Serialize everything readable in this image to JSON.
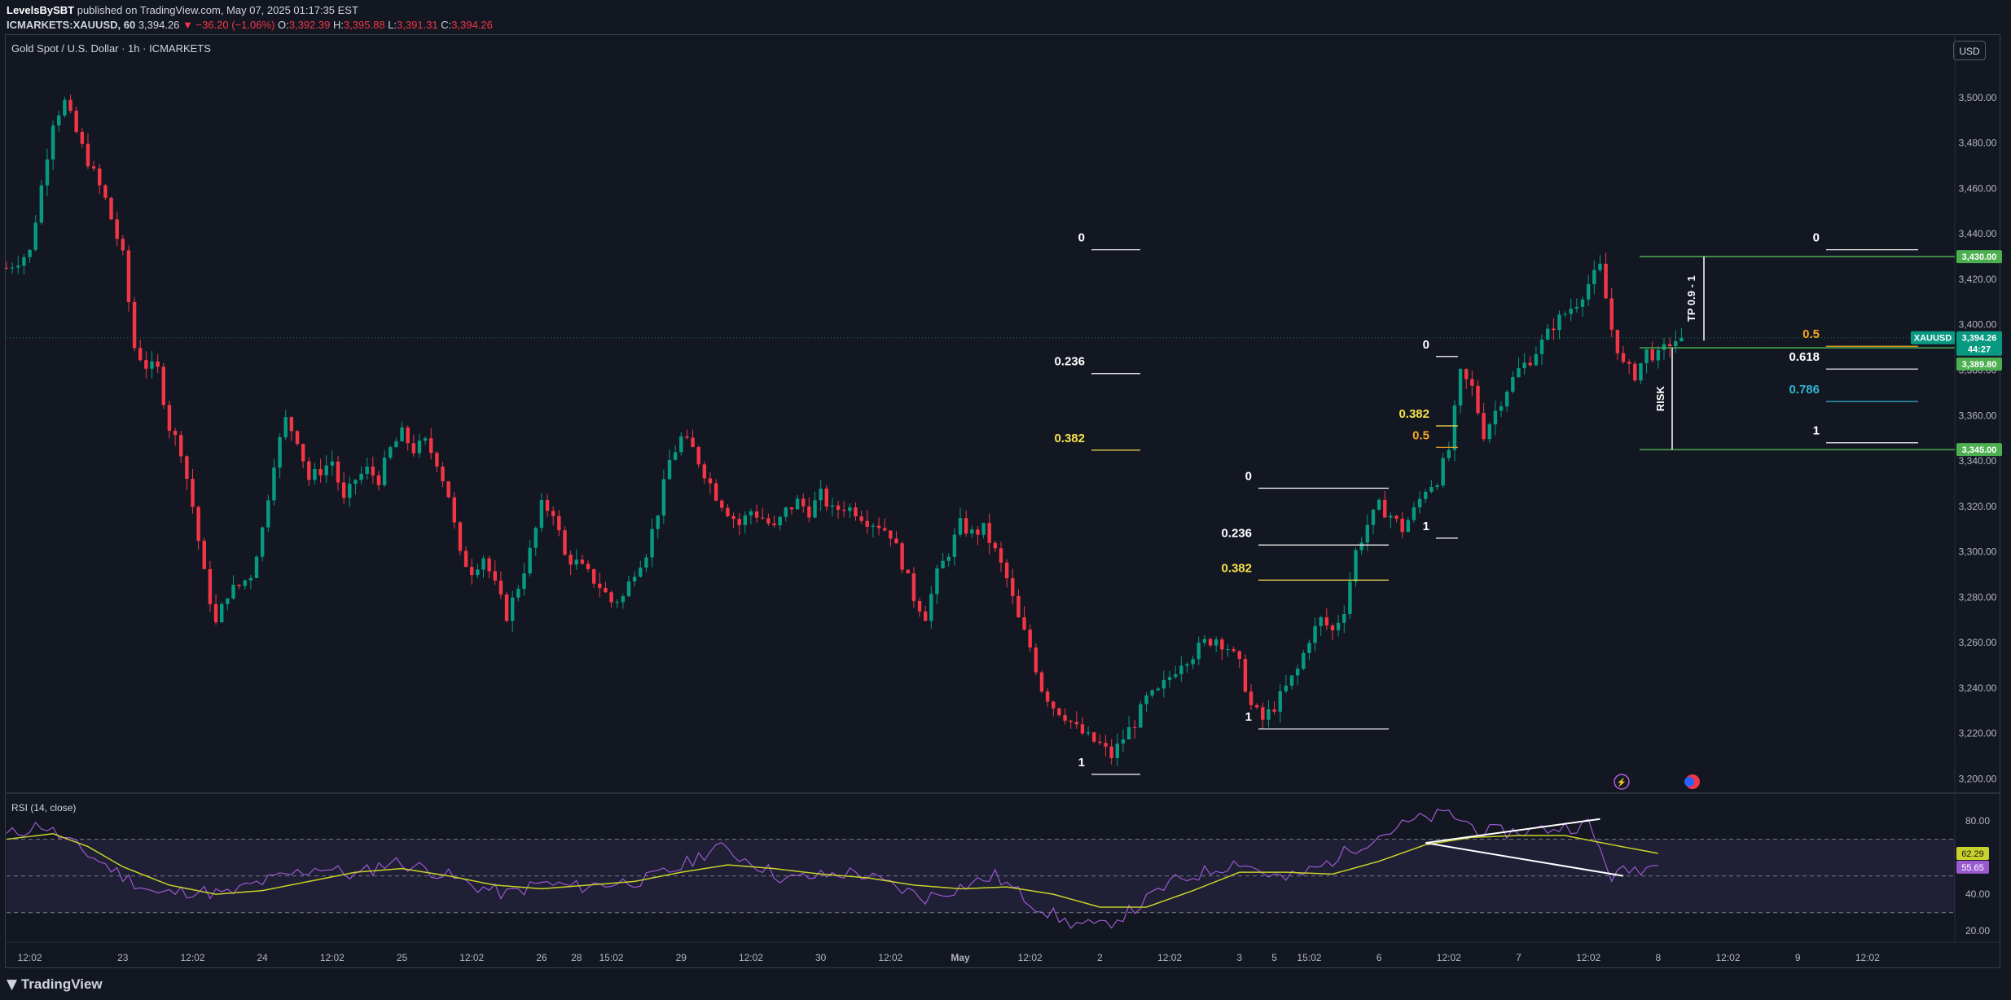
{
  "header": {
    "publisher": "LevelsBySBT",
    "published_text": "published on TradingView.com, May 07, 2025 01:17:35 EST",
    "symbol_line": "ICMARKETS:XAUUSD, 60",
    "last": "3,394.26",
    "change": "▼ −36.20 (−1.06%)",
    "o_label": "O:",
    "o": "3,392.39",
    "h_label": "H:",
    "h": "3,395.88",
    "l_label": "L:",
    "l": "3,391.31",
    "c_label": "C:",
    "c": "3,394.26"
  },
  "symbol_title": "Gold Spot / U.S. Dollar · 1h · ICMARKETS",
  "currency_button": "USD",
  "footer_brand": "TradingView",
  "colors": {
    "background": "#131722",
    "up": "#089981",
    "down": "#f23645",
    "fib_white": "#ffffff",
    "fib_yellow": "#f7e24b",
    "fib_orange": "#f5a623",
    "fib_blue": "#2fb6d6",
    "level_green": "#4caf50",
    "rsi": "#9b59d0",
    "rsi_ma": "#c9d22a"
  },
  "chart_data": {
    "type": "candlestick",
    "symbol": "XAUUSD",
    "y_axis": {
      "ylim": [
        3198,
        3510
      ],
      "ticks": [
        "3,500.00",
        "3,480.00",
        "3,460.00",
        "3,440.00",
        "3,420.00",
        "3,400.00",
        "3,380.00",
        "3,360.00",
        "3,340.00",
        "3,320.00",
        "3,300.00",
        "3,280.00",
        "3,260.00",
        "3,240.00",
        "3,220.00",
        "3,200.00"
      ],
      "tick_values": [
        3500,
        3480,
        3460,
        3440,
        3420,
        3400,
        3380,
        3360,
        3340,
        3320,
        3300,
        3280,
        3260,
        3240,
        3220,
        3200
      ]
    },
    "x_axis": {
      "labels": [
        "12:02",
        "23",
        "12:02",
        "24",
        "12:02",
        "25",
        "12:02",
        "26",
        "28",
        "15:02",
        "29",
        "12:02",
        "30",
        "12:02",
        "May",
        "12:02",
        "2",
        "12:02",
        "3",
        "5",
        "15:02",
        "6",
        "12:02",
        "7",
        "12:02",
        "8",
        "12:02",
        "9",
        "12:02"
      ],
      "label_index": [
        4,
        20,
        32,
        44,
        56,
        68,
        80,
        92,
        98,
        104,
        116,
        128,
        140,
        152,
        164,
        176,
        188,
        200,
        212,
        218,
        224,
        236,
        248,
        260,
        272,
        284,
        296,
        308,
        320
      ],
      "total_slots": 335
    },
    "price_path": [
      [
        0,
        3425
      ],
      [
        4,
        3432
      ],
      [
        8,
        3490
      ],
      [
        10,
        3498
      ],
      [
        13,
        3478
      ],
      [
        17,
        3455
      ],
      [
        20,
        3430
      ],
      [
        22,
        3390
      ],
      [
        24,
        3382
      ],
      [
        26,
        3380
      ],
      [
        28,
        3355
      ],
      [
        30,
        3345
      ],
      [
        32,
        3320
      ],
      [
        34,
        3290
      ],
      [
        36,
        3268
      ],
      [
        38,
        3282
      ],
      [
        40,
        3285
      ],
      [
        42,
        3290
      ],
      [
        44,
        3310
      ],
      [
        46,
        3340
      ],
      [
        48,
        3358
      ],
      [
        50,
        3350
      ],
      [
        52,
        3332
      ],
      [
        54,
        3336
      ],
      [
        56,
        3340
      ],
      [
        58,
        3322
      ],
      [
        60,
        3332
      ],
      [
        62,
        3336
      ],
      [
        64,
        3332
      ],
      [
        66,
        3345
      ],
      [
        68,
        3352
      ],
      [
        70,
        3345
      ],
      [
        72,
        3348
      ],
      [
        74,
        3340
      ],
      [
        76,
        3325
      ],
      [
        78,
        3298
      ],
      [
        80,
        3292
      ],
      [
        82,
        3298
      ],
      [
        84,
        3285
      ],
      [
        86,
        3272
      ],
      [
        88,
        3285
      ],
      [
        90,
        3300
      ],
      [
        92,
        3320
      ],
      [
        94,
        3318
      ],
      [
        96,
        3298
      ],
      [
        98,
        3295
      ],
      [
        100,
        3290
      ],
      [
        102,
        3285
      ],
      [
        104,
        3278
      ],
      [
        106,
        3280
      ],
      [
        108,
        3292
      ],
      [
        110,
        3300
      ],
      [
        112,
        3318
      ],
      [
        114,
        3340
      ],
      [
        116,
        3350
      ],
      [
        118,
        3345
      ],
      [
        120,
        3335
      ],
      [
        122,
        3325
      ],
      [
        124,
        3318
      ],
      [
        126,
        3312
      ],
      [
        128,
        3318
      ],
      [
        130,
        3315
      ],
      [
        132,
        3310
      ],
      [
        134,
        3318
      ],
      [
        136,
        3322
      ],
      [
        138,
        3318
      ],
      [
        140,
        3325
      ],
      [
        142,
        3318
      ],
      [
        144,
        3320
      ],
      [
        146,
        3318
      ],
      [
        148,
        3314
      ],
      [
        150,
        3312
      ],
      [
        152,
        3308
      ],
      [
        154,
        3295
      ],
      [
        156,
        3280
      ],
      [
        158,
        3272
      ],
      [
        160,
        3290
      ],
      [
        162,
        3300
      ],
      [
        164,
        3312
      ],
      [
        166,
        3308
      ],
      [
        168,
        3310
      ],
      [
        170,
        3300
      ],
      [
        172,
        3288
      ],
      [
        174,
        3270
      ],
      [
        176,
        3258
      ],
      [
        178,
        3240
      ],
      [
        180,
        3232
      ],
      [
        182,
        3228
      ],
      [
        184,
        3222
      ],
      [
        186,
        3218
      ],
      [
        188,
        3215
      ],
      [
        190,
        3210
      ],
      [
        192,
        3218
      ],
      [
        194,
        3225
      ],
      [
        196,
        3235
      ],
      [
        198,
        3238
      ],
      [
        200,
        3245
      ],
      [
        202,
        3252
      ],
      [
        204,
        3255
      ],
      [
        206,
        3260
      ],
      [
        208,
        3262
      ],
      [
        210,
        3258
      ],
      [
        212,
        3250
      ],
      [
        214,
        3232
      ],
      [
        216,
        3226
      ],
      [
        218,
        3232
      ],
      [
        220,
        3240
      ],
      [
        222,
        3248
      ],
      [
        224,
        3262
      ],
      [
        226,
        3270
      ],
      [
        228,
        3265
      ],
      [
        230,
        3275
      ],
      [
        232,
        3300
      ],
      [
        234,
        3312
      ],
      [
        236,
        3320
      ],
      [
        238,
        3316
      ],
      [
        240,
        3310
      ],
      [
        242,
        3318
      ],
      [
        244,
        3328
      ],
      [
        246,
        3332
      ],
      [
        248,
        3345
      ],
      [
        250,
        3378
      ],
      [
        252,
        3372
      ],
      [
        254,
        3352
      ],
      [
        256,
        3362
      ],
      [
        258,
        3372
      ],
      [
        260,
        3380
      ],
      [
        262,
        3385
      ],
      [
        264,
        3392
      ],
      [
        266,
        3400
      ],
      [
        268,
        3405
      ],
      [
        270,
        3410
      ],
      [
        272,
        3418
      ],
      [
        274,
        3425
      ],
      [
        276,
        3398
      ],
      [
        278,
        3382
      ],
      [
        280,
        3378
      ],
      [
        282,
        3388
      ],
      [
        284,
        3386
      ],
      [
        286,
        3392
      ],
      [
        288,
        3394.26
      ]
    ],
    "fibonacci_drawings": [
      {
        "levels": [
          {
            "label": "0"
          },
          {
            "label": "0.236"
          },
          {
            "label": "0.382"
          },
          {
            "label": "1"
          }
        ],
        "high": 3433,
        "low": 3202
      },
      {
        "levels": [
          {
            "label": "0"
          },
          {
            "label": "0.236"
          },
          {
            "label": "0.382"
          },
          {
            "label": "1"
          }
        ],
        "high": 3328,
        "low": 3222
      },
      {
        "levels": [
          {
            "label": "0"
          },
          {
            "label": "0.382"
          },
          {
            "label": "0.5"
          },
          {
            "label": "1"
          }
        ],
        "high": 3386,
        "low": 3306
      },
      {
        "levels": [
          {
            "label": "0"
          },
          {
            "label": "0.5"
          },
          {
            "label": "0.618"
          },
          {
            "label": "0.786"
          },
          {
            "label": "1"
          }
        ],
        "high": 3433,
        "low": 3348
      }
    ],
    "annotations": [
      "TP 0.9 - 1",
      "RISK"
    ],
    "price_labels": [
      {
        "text": "3,430.00",
        "value": 3430
      },
      {
        "text": "XAUUSD",
        "value": 3394.26
      },
      {
        "text": "3,394.26",
        "value": 3394.26
      },
      {
        "text": "44:27",
        "value": 3394.26
      },
      {
        "text": "3,389.80",
        "value": 3389.8
      },
      {
        "text": "3,345.00",
        "value": 3345
      }
    ],
    "horizontal_levels": [
      3430,
      3389.8,
      3345
    ],
    "rsi": {
      "title": "RSI (14, close)",
      "ticks": [
        "80.00",
        "40.00",
        "20.00"
      ],
      "tick_values": [
        80,
        40,
        20
      ],
      "ylim": [
        17,
        88
      ],
      "bands": [
        70,
        50,
        30
      ],
      "value_rsi": "55.65",
      "value_ma": "62.29",
      "rsi_path": [
        [
          0,
          72
        ],
        [
          6,
          78
        ],
        [
          10,
          70
        ],
        [
          14,
          62
        ],
        [
          20,
          50
        ],
        [
          26,
          40
        ],
        [
          32,
          42
        ],
        [
          38,
          40
        ],
        [
          42,
          45
        ],
        [
          48,
          50
        ],
        [
          54,
          55
        ],
        [
          60,
          50
        ],
        [
          66,
          58
        ],
        [
          72,
          54
        ],
        [
          76,
          50
        ],
        [
          80,
          45
        ],
        [
          86,
          40
        ],
        [
          92,
          46
        ],
        [
          98,
          44
        ],
        [
          104,
          46
        ],
        [
          110,
          48
        ],
        [
          116,
          55
        ],
        [
          122,
          66
        ],
        [
          128,
          58
        ],
        [
          134,
          48
        ],
        [
          140,
          50
        ],
        [
          146,
          52
        ],
        [
          152,
          45
        ],
        [
          158,
          38
        ],
        [
          164,
          44
        ],
        [
          170,
          50
        ],
        [
          176,
          36
        ],
        [
          182,
          25
        ],
        [
          188,
          22
        ],
        [
          194,
          32
        ],
        [
          200,
          46
        ],
        [
          206,
          52
        ],
        [
          212,
          58
        ],
        [
          216,
          52
        ],
        [
          220,
          48
        ],
        [
          226,
          55
        ],
        [
          232,
          66
        ],
        [
          236,
          72
        ],
        [
          242,
          80
        ],
        [
          248,
          84
        ],
        [
          254,
          74
        ],
        [
          260,
          74
        ],
        [
          266,
          76
        ],
        [
          272,
          78
        ],
        [
          276,
          50
        ],
        [
          280,
          54
        ],
        [
          284,
          55.65
        ]
      ],
      "ma_path": [
        [
          0,
          70
        ],
        [
          8,
          73
        ],
        [
          14,
          66
        ],
        [
          20,
          55
        ],
        [
          28,
          45
        ],
        [
          36,
          40
        ],
        [
          44,
          42
        ],
        [
          52,
          47
        ],
        [
          60,
          52
        ],
        [
          68,
          54
        ],
        [
          76,
          50
        ],
        [
          84,
          45
        ],
        [
          92,
          43
        ],
        [
          100,
          45
        ],
        [
          108,
          47
        ],
        [
          116,
          52
        ],
        [
          124,
          56
        ],
        [
          132,
          54
        ],
        [
          140,
          51
        ],
        [
          148,
          49
        ],
        [
          156,
          45
        ],
        [
          164,
          43
        ],
        [
          172,
          44
        ],
        [
          180,
          40
        ],
        [
          188,
          33
        ],
        [
          196,
          33
        ],
        [
          204,
          42
        ],
        [
          212,
          52
        ],
        [
          220,
          52
        ],
        [
          228,
          51
        ],
        [
          236,
          58
        ],
        [
          244,
          67
        ],
        [
          252,
          71
        ],
        [
          260,
          72
        ],
        [
          268,
          72
        ],
        [
          276,
          67
        ],
        [
          284,
          62.29
        ]
      ],
      "divergence": [
        [
          [
            244,
            68
          ],
          [
            274,
            81
          ]
        ],
        [
          [
            244,
            68
          ],
          [
            278,
            50
          ]
        ]
      ],
      "slot_range": [
        0,
        290
      ]
    }
  }
}
